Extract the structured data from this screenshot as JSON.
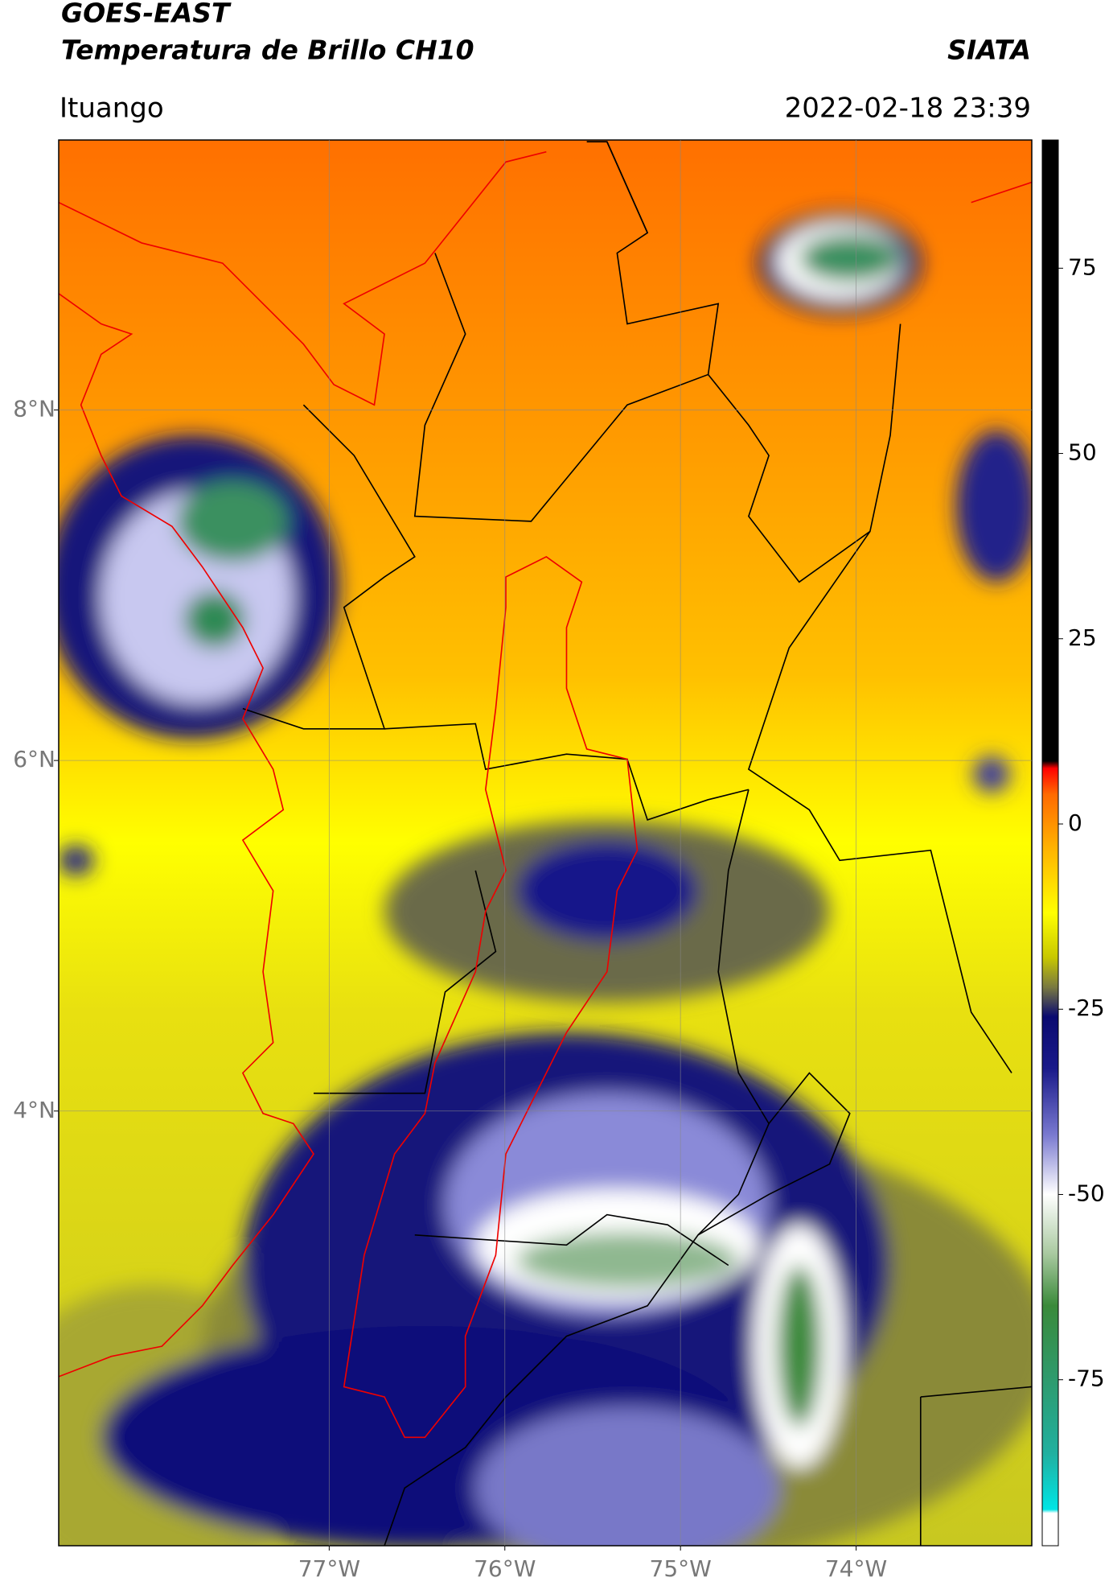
{
  "chart_data": {
    "type": "map",
    "title": "GOES-EAST",
    "subtitle": "Temperatura de Brillo CH10",
    "source": "SIATA",
    "region": "Ituango",
    "timestamp": "2022-02-18 23:39",
    "xlim": [
      -78.54,
      -73.0
    ],
    "ylim": [
      1.52,
      9.54
    ],
    "xticks": [
      {
        "value": -77,
        "label": "77°W"
      },
      {
        "value": -76,
        "label": "76°W"
      },
      {
        "value": -75,
        "label": "75°W"
      },
      {
        "value": -74,
        "label": "74°W"
      }
    ],
    "yticks": [
      {
        "value": 4,
        "label": "4°N"
      },
      {
        "value": 6,
        "label": "6°N"
      },
      {
        "value": 8,
        "label": "8°N"
      }
    ],
    "grid": true,
    "colorbar": {
      "lim": [
        -97.4,
        92.3
      ],
      "ticks": [
        -75,
        -50,
        -25,
        0,
        25,
        50,
        75
      ],
      "stops": [
        {
          "value": -97.4,
          "color": "#ffffff"
        },
        {
          "value": -93,
          "color": "#ffffff"
        },
        {
          "value": -92.5,
          "color": "#00e5e5"
        },
        {
          "value": -85,
          "color": "#20b0a0"
        },
        {
          "value": -75,
          "color": "#2e9b6e"
        },
        {
          "value": -65,
          "color": "#3a8a3a"
        },
        {
          "value": -58,
          "color": "#a9c9a0"
        },
        {
          "value": -50,
          "color": "#ffffff"
        },
        {
          "value": -42,
          "color": "#7a7ad0"
        },
        {
          "value": -33,
          "color": "#1a1a8a"
        },
        {
          "value": -26,
          "color": "#0a0a70"
        },
        {
          "value": -22,
          "color": "#7a7a40"
        },
        {
          "value": -18,
          "color": "#c8c800"
        },
        {
          "value": -12,
          "color": "#ffff00"
        },
        {
          "value": -3,
          "color": "#ffb000"
        },
        {
          "value": 4,
          "color": "#ff6a00"
        },
        {
          "value": 7.5,
          "color": "#ff0000"
        },
        {
          "value": 8.5,
          "color": "#000000"
        },
        {
          "value": 92.3,
          "color": "#000000"
        }
      ]
    }
  }
}
